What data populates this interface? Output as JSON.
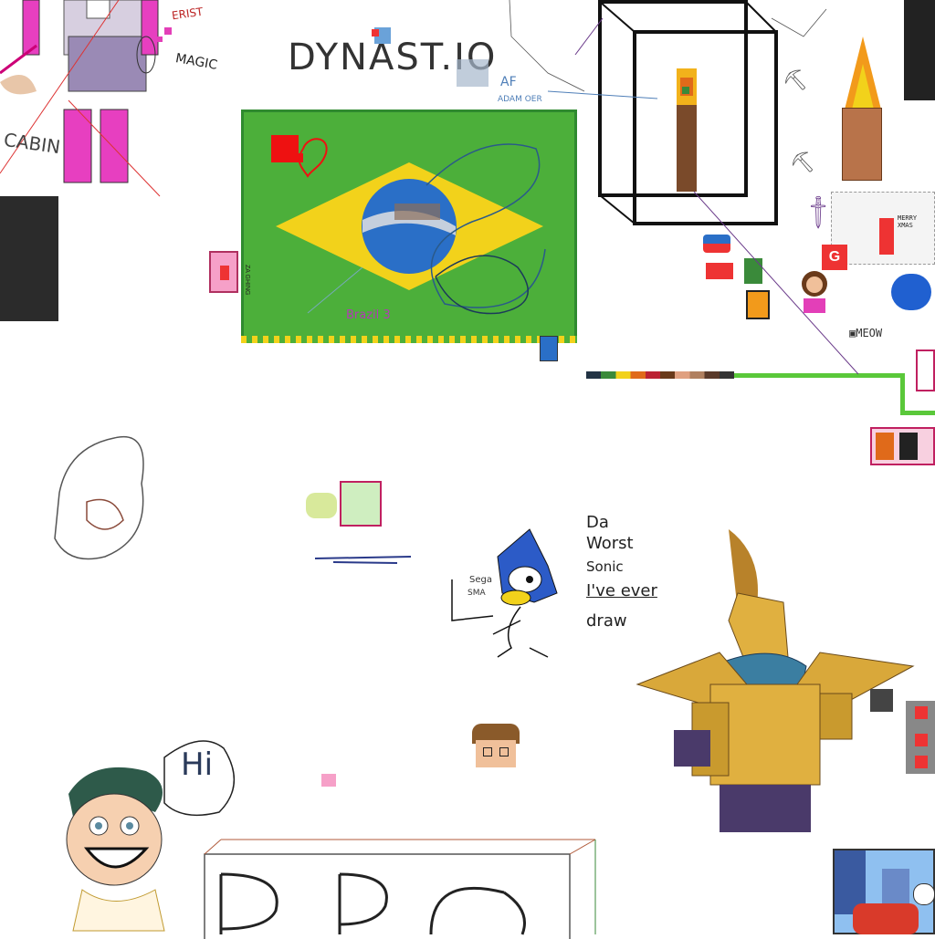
{
  "canvas": {
    "background": "#ffffff",
    "texts": {
      "dynast": "DYNAST.IO",
      "magic": "MAGIC",
      "erist": "ERIST",
      "cabin": "CABIN",
      "brazil": "Brazil 3",
      "worst_sonic_1": "Da",
      "worst_sonic_2": "Worst",
      "worst_sonic_3": "Sonic",
      "worst_sonic_4": "I've ever",
      "worst_sonic_5": "draw",
      "sega": "Sega",
      "sega2": "SMA",
      "hi": "Hi",
      "meow": "MEOW",
      "merry": "MERRY",
      "xmas": "XMAS",
      "af": "AF",
      "adam": "ADAM OER",
      "za": "ZA GHING"
    },
    "colors": {
      "flag_green": "#4caf3a",
      "flag_yellow": "#f2d21b",
      "flag_blue": "#2a6fc7",
      "pink": "#e33fb8",
      "gold": "#c99a2e",
      "scarf": "#3b7ea1"
    }
  }
}
